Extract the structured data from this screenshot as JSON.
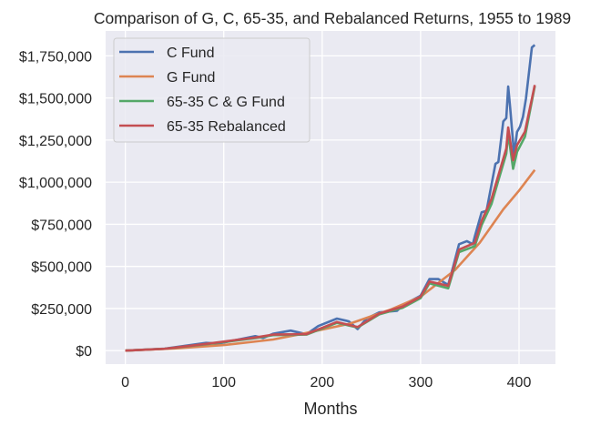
{
  "chart_data": {
    "type": "line",
    "title": "Comparison of G, C, 65-35, and Rebalanced Returns, 1955 to 1989",
    "xlabel": "Months",
    "ylabel": "",
    "xlim": [
      -20,
      437
    ],
    "ylim": [
      -80000,
      1898000
    ],
    "grid": true,
    "legend_position": "top-left",
    "background": "#EAEAF2",
    "x_ticks": [
      0,
      100,
      200,
      300,
      400
    ],
    "x_tick_labels": [
      "0",
      "100",
      "200",
      "300",
      "400"
    ],
    "y_ticks": [
      0,
      250000,
      500000,
      750000,
      1000000,
      1250000,
      1500000,
      1750000
    ],
    "y_tick_labels": [
      "$0",
      "$250,000",
      "$500,000",
      "$750,000",
      "$1,000,000",
      "$1,250,000",
      "$1,500,000",
      "$1,750,000"
    ],
    "series": [
      {
        "name": "C Fund",
        "color": "#4C72B0",
        "x": [
          0,
          40,
          82,
          95,
          132,
          140,
          150,
          168,
          184,
          196,
          215,
          227,
          236,
          245,
          258,
          276,
          282,
          300,
          309,
          318,
          328,
          333,
          339,
          347,
          353,
          355,
          362,
          367,
          372,
          376,
          379,
          384,
          387,
          389,
          391,
          395,
          398,
          401,
          404,
          407,
          413,
          416
        ],
        "y": [
          0,
          12000,
          46000,
          42000,
          86000,
          75000,
          100000,
          119000,
          97000,
          146000,
          190000,
          174000,
          128000,
          190000,
          227000,
          236000,
          270000,
          326000,
          425000,
          425000,
          390000,
          497000,
          632000,
          650000,
          632000,
          677000,
          821000,
          830000,
          983000,
          1109000,
          1120000,
          1361000,
          1380000,
          1568000,
          1440000,
          1163000,
          1298000,
          1330000,
          1388000,
          1496000,
          1800000,
          1815000
        ]
      },
      {
        "name": "G Fund",
        "color": "#DD8452",
        "x": [
          0,
          50,
          100,
          150,
          180,
          228,
          271,
          300,
          335,
          360,
          384,
          400,
          416
        ],
        "y": [
          0,
          13000,
          33000,
          66000,
          100000,
          160000,
          247000,
          320000,
          479000,
          640000,
          839000,
          950000,
          1073000
        ]
      },
      {
        "name": "65-35 C & G Fund",
        "color": "#55A868",
        "x": [
          0,
          40,
          82,
          132,
          150,
          184,
          215,
          236,
          258,
          282,
          300,
          309,
          328,
          339,
          355,
          362,
          372,
          378,
          387,
          389,
          394,
          398,
          406,
          416
        ],
        "y": [
          0,
          11000,
          38000,
          74000,
          92000,
          95000,
          165000,
          138000,
          215000,
          255000,
          312000,
          400000,
          370000,
          585000,
          620000,
          745000,
          870000,
          990000,
          1170000,
          1290000,
          1080000,
          1180000,
          1270000,
          1570000
        ]
      },
      {
        "name": "65-35 Rebalanced",
        "color": "#C44E52",
        "x": [
          0,
          40,
          82,
          132,
          150,
          184,
          215,
          236,
          258,
          282,
          300,
          309,
          328,
          339,
          355,
          362,
          372,
          378,
          387,
          389,
          394,
          398,
          406,
          416
        ],
        "y": [
          0,
          11000,
          40000,
          78000,
          95000,
          98000,
          170000,
          140000,
          220000,
          262000,
          320000,
          410000,
          385000,
          600000,
          640000,
          770000,
          900000,
          1020000,
          1200000,
          1325000,
          1130000,
          1220000,
          1300000,
          1577000
        ]
      }
    ]
  }
}
